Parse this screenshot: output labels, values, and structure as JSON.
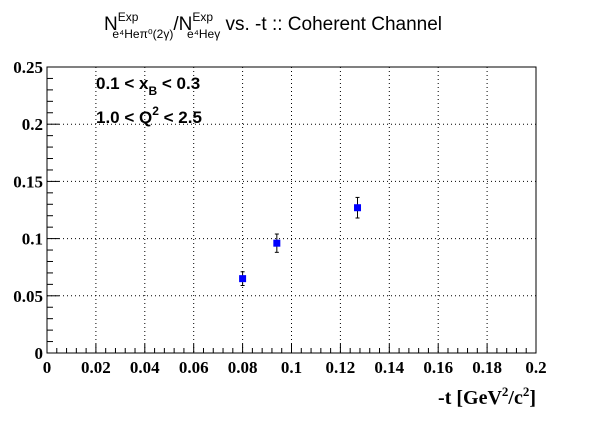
{
  "chart_data": {
    "type": "scatter",
    "title": {
      "main": "N",
      "sup1": "Exp",
      "sub1": "e⁴Heπ⁰(2γ)",
      "slash": "/N",
      "sup2": "Exp",
      "sub2": "e⁴Heγ",
      "tail": " vs. -t :: Coherent Channel"
    },
    "xlabel": {
      "text": "-t [GeV",
      "sup1": "2",
      "mid": "/c",
      "sup2": "2",
      "end": "]"
    },
    "ylabel": "",
    "xlim": [
      0,
      0.2
    ],
    "ylim": [
      0,
      0.25
    ],
    "x_ticks": [
      0,
      0.02,
      0.04,
      0.06,
      0.08,
      0.1,
      0.12,
      0.14,
      0.16,
      0.18,
      0.2
    ],
    "x_tick_labels": [
      "0",
      "0.02",
      "0.04",
      "0.06",
      "0.08",
      "0.1",
      "0.12",
      "0.14",
      "0.16",
      "0.18",
      "0.2"
    ],
    "y_ticks": [
      0,
      0.05,
      0.1,
      0.15,
      0.2,
      0.25
    ],
    "y_tick_labels": [
      "0",
      "0.05",
      "0.1",
      "0.15",
      "0.2",
      "0.25"
    ],
    "grid": true,
    "grid_style": "dotted",
    "marker_color": "#0000ff",
    "points": [
      {
        "x": 0.08,
        "y": 0.065,
        "yerr": 0.006
      },
      {
        "x": 0.094,
        "y": 0.096,
        "yerr": 0.008
      },
      {
        "x": 0.127,
        "y": 0.127,
        "yerr": 0.009
      }
    ],
    "annotations": {
      "xb": {
        "pre": "0.1 < x",
        "sub": "B",
        "post": " < 0.3"
      },
      "q2": {
        "pre": "1.0 < Q",
        "sup": "2",
        "post": " < 2.5"
      }
    }
  }
}
